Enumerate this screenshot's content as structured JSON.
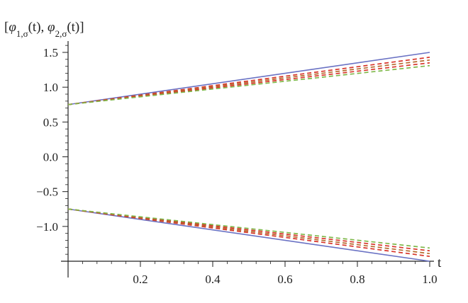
{
  "chart_data": {
    "type": "line",
    "title": "",
    "ylabel": "[φ1,σ(t), φ2,σ(t)]",
    "ylabel_parts": {
      "open": "[",
      "f1": "φ",
      "f1_sub": "1,σ",
      "f1_arg": "(t), ",
      "f2": "φ",
      "f2_sub": "2,σ",
      "f2_arg": "(t)",
      "close": "]"
    },
    "xlabel": "t",
    "xlim": [
      0.0,
      1.0
    ],
    "ylim": [
      -1.5,
      1.65
    ],
    "x_ticks": [
      0.2,
      0.4,
      0.6,
      0.8,
      1.0
    ],
    "x_tick_labels": [
      "0.2",
      "0.4",
      "0.6",
      "0.8",
      "1.0"
    ],
    "y_ticks": [
      1.5,
      1.0,
      0.5,
      0.0,
      -0.5,
      -1.0
    ],
    "y_tick_labels": [
      "1.5",
      "1.0",
      "0.5",
      "0.0",
      "−0.5",
      "−1.0"
    ],
    "grid": false,
    "legend": false,
    "x": [
      0.0,
      1.0
    ],
    "series": [
      {
        "values": [
          0.75,
          1.5
        ],
        "color": "#6a72c4",
        "dash": "solid"
      },
      {
        "values": [
          0.75,
          1.43
        ],
        "color": "#d8362b",
        "dash": "dashed"
      },
      {
        "values": [
          0.75,
          1.39
        ],
        "color": "#b56b2e",
        "dash": "dashed"
      },
      {
        "values": [
          0.75,
          1.35
        ],
        "color": "#d8362b",
        "dash": "dashed"
      },
      {
        "values": [
          0.75,
          1.31
        ],
        "color": "#7fb84a",
        "dash": "dashed"
      },
      {
        "values": [
          -0.75,
          -1.5
        ],
        "color": "#6a72c4",
        "dash": "solid"
      },
      {
        "values": [
          -0.75,
          -1.43
        ],
        "color": "#d8362b",
        "dash": "dashed"
      },
      {
        "values": [
          -0.75,
          -1.39
        ],
        "color": "#b56b2e",
        "dash": "dashed"
      },
      {
        "values": [
          -0.75,
          -1.35
        ],
        "color": "#d8362b",
        "dash": "dashed"
      },
      {
        "values": [
          -0.75,
          -1.31
        ],
        "color": "#7fb84a",
        "dash": "dashed"
      }
    ]
  }
}
